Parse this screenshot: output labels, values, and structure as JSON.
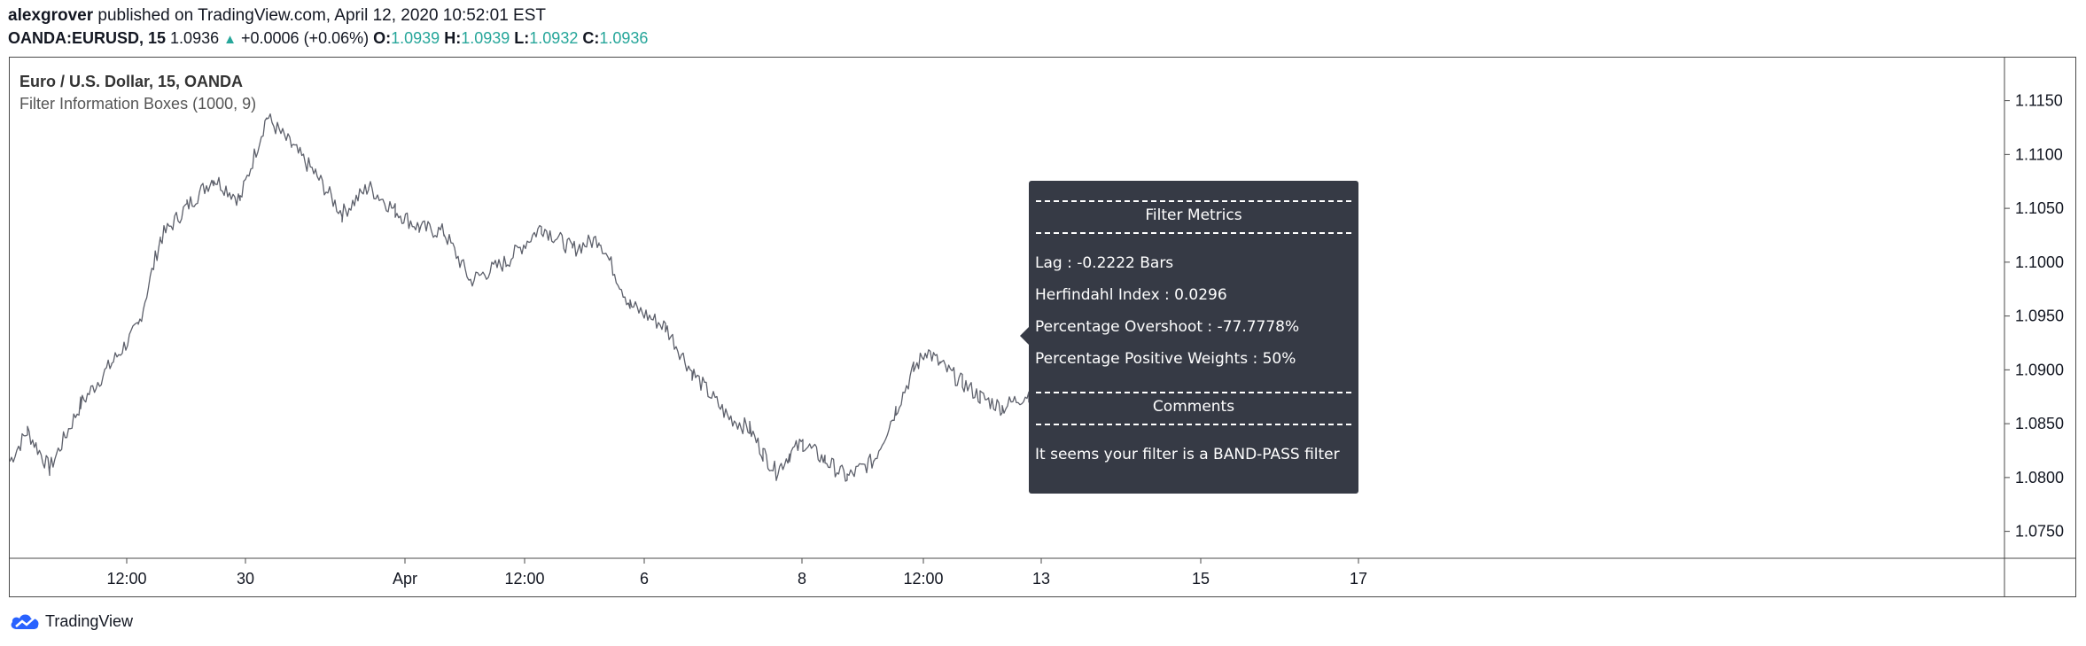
{
  "header": {
    "author": "alexgrover",
    "published": " published on TradingView.com, April 12, 2020 10:52:01 EST",
    "symbol": "OANDA:EURUSD, 15",
    "price": "1.0936",
    "change": "+0.0006 (+0.06%)",
    "o_label": "O:",
    "o": "1.0939",
    "h_label": "H:",
    "h": "1.0939",
    "l_label": "L:",
    "l": "1.0932",
    "c_label": "C:",
    "c": "1.0936",
    "up_color": "#26a69a"
  },
  "legend": {
    "title": "Euro / U.S. Dollar, 15, OANDA",
    "indicator": "Filter Information Boxes (1000, 9)"
  },
  "tooltip": {
    "metrics_heading": "Filter Metrics",
    "lag": "Lag : -0.2222 Bars",
    "herfindahl": "Herfindahl Index : 0.0296",
    "overshoot": "Percentage Overshoot : -77.7778%",
    "positive_weights": "Percentage Positive Weights : 50%",
    "comments_heading": "Comments",
    "comment": "It seems your filter is a BAND-PASS filter"
  },
  "footer": {
    "brand": "TradingView",
    "logo_icon": "tradingview-cloud-logo-icon"
  },
  "chart_data": {
    "type": "line",
    "series": [
      {
        "name": "",
        "color": "#5d606b",
        "x": [
          0,
          20,
          45,
          80,
          115,
          145,
          170,
          200,
          230,
          260,
          290,
          318,
          345,
          375,
          405,
          435,
          462,
          490,
          520,
          560,
          600,
          635,
          665,
          700,
          740,
          770,
          810,
          835,
          850,
          865,
          880,
          895,
          920,
          945,
          975,
          1000,
          1020,
          1035,
          1050,
          1075,
          1095,
          1120,
          1150,
          1180,
          1210,
          1240,
          1270,
          1300,
          1330,
          1380,
          1420,
          1480,
          1520,
          1560,
          1610,
          1660,
          1720,
          1800,
          1860,
          1950,
          2010,
          2060,
          2120,
          2160,
          2230,
          2300,
          2330
        ],
        "y": [
          1.0815,
          1.0843,
          1.0808,
          1.0868,
          1.0906,
          1.094,
          1.1022,
          1.1052,
          1.1078,
          1.1058,
          1.1135,
          1.1108,
          1.1082,
          1.1045,
          1.107,
          1.1048,
          1.1032,
          1.1028,
          1.0983,
          1.1,
          1.1033,
          1.1012,
          1.1022,
          1.096,
          1.094,
          1.0898,
          1.0857,
          1.0845,
          1.0823,
          1.0805,
          1.0822,
          1.0832,
          1.0816,
          1.08,
          1.0816,
          1.0863,
          1.09,
          1.0918,
          1.0905,
          1.0888,
          1.0875,
          1.0865,
          1.0878,
          1.0868,
          1.0866,
          1.09,
          1.0935,
          1.0944,
          1.0939,
          1.094,
          1.0936,
          null,
          null,
          null,
          null,
          null,
          null,
          null,
          null,
          null,
          null,
          null,
          null,
          null,
          null,
          null,
          null
        ],
        "x_note_only": ""
      }
    ],
    "x_ticks": [
      "12:00",
      "30",
      "Apr",
      "12:00",
      "6",
      "8",
      "12:00",
      "13",
      "15",
      "17"
    ],
    "y_ticks": [
      "1.1150",
      "1.1100",
      "1.1050",
      "1.1000",
      "1.0950",
      "1.0900",
      "1.0850",
      "1.0800",
      "1.0750"
    ],
    "ylim": [
      1.0725,
      1.119
    ],
    "grid": false
  }
}
